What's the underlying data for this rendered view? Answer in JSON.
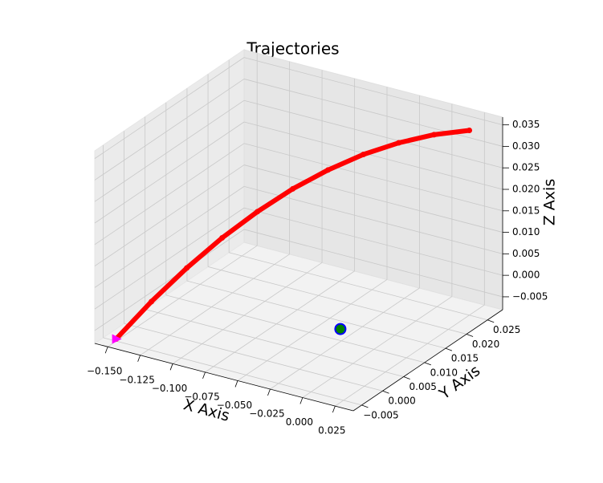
{
  "chart_data": {
    "type": "scatter3d",
    "title": "Trajectories",
    "xlabel": "X Axis",
    "ylabel": "Y Axis",
    "zlabel": "Z Axis",
    "xlim": [
      -0.16,
      0.039
    ],
    "ylim": [
      -0.007,
      0.0286
    ],
    "zlim": [
      -0.008,
      0.0368
    ],
    "xticks": [
      {
        "value": -0.15,
        "label": "−0.150"
      },
      {
        "value": -0.125,
        "label": "−0.125"
      },
      {
        "value": -0.1,
        "label": "−0.100"
      },
      {
        "value": -0.075,
        "label": "−0.075"
      },
      {
        "value": -0.05,
        "label": "−0.050"
      },
      {
        "value": -0.025,
        "label": "−0.025"
      },
      {
        "value": 0,
        "label": "0.000"
      },
      {
        "value": 0.025,
        "label": "0.025"
      }
    ],
    "yticks": [
      {
        "value": -0.005,
        "label": "−0.005"
      },
      {
        "value": 0,
        "label": "0.000"
      },
      {
        "value": 0.005,
        "label": "0.005"
      },
      {
        "value": 0.01,
        "label": "0.010"
      },
      {
        "value": 0.015,
        "label": "0.015"
      },
      {
        "value": 0.02,
        "label": "0.020"
      },
      {
        "value": 0.025,
        "label": "0.025"
      }
    ],
    "zticks": [
      {
        "value": -0.005,
        "label": "−0.005"
      },
      {
        "value": 0,
        "label": "0.000"
      },
      {
        "value": 0.005,
        "label": "0.005"
      },
      {
        "value": 0.01,
        "label": "0.010"
      },
      {
        "value": 0.015,
        "label": "0.015"
      },
      {
        "value": 0.02,
        "label": "0.020"
      },
      {
        "value": 0.025,
        "label": "0.025"
      },
      {
        "value": 0.03,
        "label": "0.030"
      },
      {
        "value": 0.035,
        "label": "0.035"
      }
    ],
    "grid": true,
    "series": [
      {
        "color": "#ff0000",
        "x": [
          -0.15,
          -0.1325,
          -0.115,
          -0.0975,
          -0.08,
          -0.0625,
          -0.045,
          -0.0275,
          -0.01,
          0.0075,
          0.025
        ],
        "y": [
          -0.005,
          -0.002,
          0.001,
          0.004,
          0.007,
          0.01,
          0.013,
          0.016,
          0.019,
          0.022,
          0.025
        ],
        "z": [
          -0.0075,
          0.0006,
          0.0078,
          0.0142,
          0.0197,
          0.0244,
          0.0282,
          0.0312,
          0.0333,
          0.0346,
          0.035
        ]
      }
    ],
    "start": {
      "x": -0.15,
      "y": -0.005,
      "z": -0.0075,
      "color": "#ff00ff"
    },
    "goal": {
      "x": 0,
      "y": 0.002,
      "z": 0.002,
      "color": "#008000",
      "edge_color": "#0000ff"
    }
  }
}
